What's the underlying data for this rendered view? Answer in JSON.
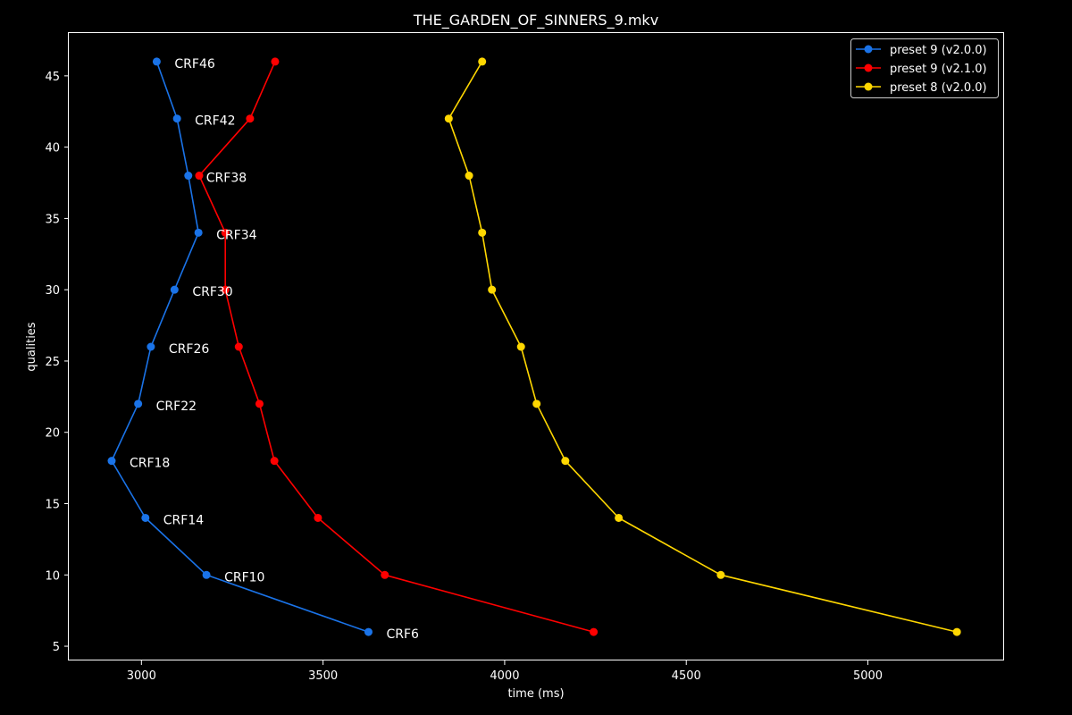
{
  "chart_data": {
    "type": "line",
    "title": "THE_GARDEN_OF_SINNERS_9.mkv",
    "xlabel": "time (ms)",
    "ylabel": "qualities",
    "xlim": [
      2800,
      5375
    ],
    "ylim": [
      4,
      48
    ],
    "xticks": [
      3000,
      3500,
      4000,
      4500,
      5000
    ],
    "yticks": [
      5,
      10,
      15,
      20,
      25,
      30,
      35,
      40,
      45
    ],
    "grid": false,
    "legend_position": "upper-right",
    "series": [
      {
        "name": "preset 9 (v2.0.0)",
        "color": "#1a73e8",
        "points": [
          {
            "x": 3042,
            "y": 46
          },
          {
            "x": 3098,
            "y": 42
          },
          {
            "x": 3129,
            "y": 38
          },
          {
            "x": 3157,
            "y": 34
          },
          {
            "x": 3091,
            "y": 30
          },
          {
            "x": 3026,
            "y": 26
          },
          {
            "x": 2991,
            "y": 22
          },
          {
            "x": 2918,
            "y": 18
          },
          {
            "x": 3011,
            "y": 14
          },
          {
            "x": 3179,
            "y": 10
          },
          {
            "x": 3625,
            "y": 6
          }
        ]
      },
      {
        "name": "preset 9 (v2.1.0)",
        "color": "#ff0000",
        "points": [
          {
            "x": 3368,
            "y": 46
          },
          {
            "x": 3299,
            "y": 42
          },
          {
            "x": 3159,
            "y": 38
          },
          {
            "x": 3231,
            "y": 34
          },
          {
            "x": 3231,
            "y": 30
          },
          {
            "x": 3268,
            "y": 26
          },
          {
            "x": 3325,
            "y": 22
          },
          {
            "x": 3366,
            "y": 18
          },
          {
            "x": 3486,
            "y": 14
          },
          {
            "x": 3670,
            "y": 10
          },
          {
            "x": 4245,
            "y": 6
          }
        ]
      },
      {
        "name": "preset 8 (v2.0.0)",
        "color": "#ffd700",
        "points": [
          {
            "x": 3938,
            "y": 46
          },
          {
            "x": 3846,
            "y": 42
          },
          {
            "x": 3902,
            "y": 38
          },
          {
            "x": 3938,
            "y": 34
          },
          {
            "x": 3965,
            "y": 30
          },
          {
            "x": 4045,
            "y": 26
          },
          {
            "x": 4088,
            "y": 22
          },
          {
            "x": 4167,
            "y": 18
          },
          {
            "x": 4314,
            "y": 14
          },
          {
            "x": 4595,
            "y": 10
          },
          {
            "x": 5245,
            "y": 6
          }
        ]
      }
    ],
    "annotations": [
      {
        "text": "CRF46",
        "x": 3042,
        "y": 46
      },
      {
        "text": "CRF42",
        "x": 3098,
        "y": 42
      },
      {
        "text": "CRF38",
        "x": 3129,
        "y": 38
      },
      {
        "text": "CRF34",
        "x": 3157,
        "y": 34
      },
      {
        "text": "CRF30",
        "x": 3091,
        "y": 30
      },
      {
        "text": "CRF26",
        "x": 3026,
        "y": 26
      },
      {
        "text": "CRF22",
        "x": 2991,
        "y": 22
      },
      {
        "text": "CRF18",
        "x": 2918,
        "y": 18
      },
      {
        "text": "CRF14",
        "x": 3011,
        "y": 14
      },
      {
        "text": "CRF10",
        "x": 3179,
        "y": 10
      },
      {
        "text": "CRF6",
        "x": 3625,
        "y": 6
      }
    ]
  }
}
